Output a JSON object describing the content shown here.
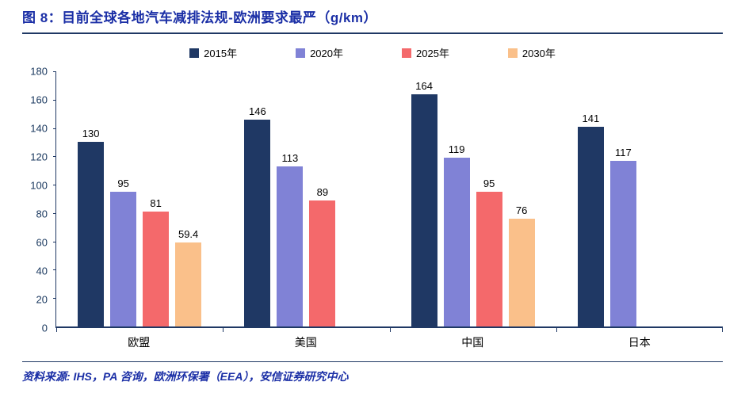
{
  "header": {
    "title": "图 8：目前全球各地汽车减排法规-欧洲要求最严（g/km）"
  },
  "chart_data": {
    "type": "bar",
    "title": "目前全球各地汽车减排法规-欧洲要求最严（g/km）",
    "categories": [
      "欧盟",
      "美国",
      "中国",
      "日本"
    ],
    "series": [
      {
        "name": "2015年",
        "color": "#1F3864",
        "values": [
          130,
          146,
          164,
          141
        ]
      },
      {
        "name": "2020年",
        "color": "#8082D6",
        "values": [
          95,
          113,
          119,
          117
        ]
      },
      {
        "name": "2025年",
        "color": "#F4696B",
        "values": [
          81,
          89,
          95,
          null
        ]
      },
      {
        "name": "2030年",
        "color": "#FAC08A",
        "values": [
          59.4,
          null,
          76,
          null
        ]
      }
    ],
    "xlabel": "",
    "ylabel": "",
    "ylim": [
      0,
      180
    ],
    "ytick_step": 20,
    "grid": false,
    "legend_position": "top"
  },
  "footer": {
    "source": "资料来源: IHS，PA 咨询，欧洲环保署（EEA），安信证券研究中心"
  }
}
